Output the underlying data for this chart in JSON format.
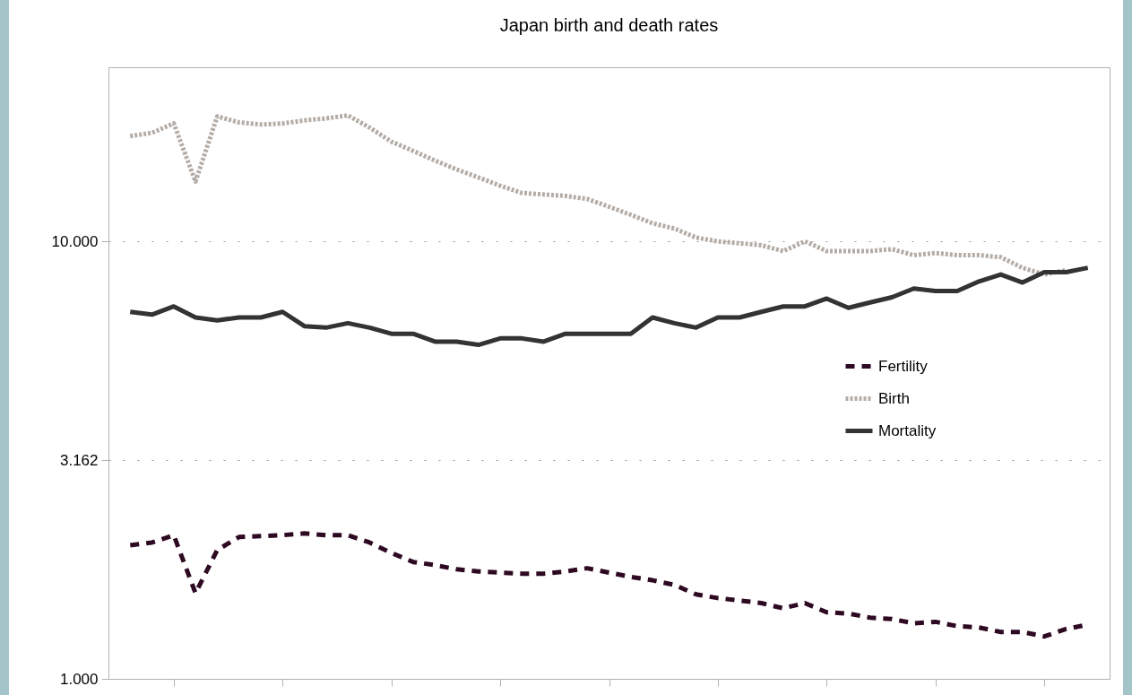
{
  "chart_data": {
    "type": "line",
    "title": "Japan birth and death rates",
    "categories": [
      null,
      null,
      null,
      null,
      null,
      null,
      null,
      null,
      null,
      null,
      null,
      null,
      null,
      null,
      null,
      null,
      null,
      null,
      null,
      null,
      null,
      null,
      null,
      null,
      null,
      null,
      null,
      null,
      null,
      null,
      null,
      null,
      null,
      null,
      null,
      null,
      null,
      null,
      null,
      null,
      null,
      null,
      null,
      null,
      null
    ],
    "series": [
      {
        "name": "Fertility",
        "color": "#2d0a22",
        "line_style": "dashed",
        "values": [
          2.02,
          2.05,
          2.13,
          1.57,
          1.97,
          2.11,
          2.12,
          2.13,
          2.15,
          2.13,
          2.13,
          2.05,
          1.94,
          1.85,
          1.82,
          1.78,
          1.76,
          1.75,
          1.74,
          1.74,
          1.76,
          1.79,
          1.75,
          1.71,
          1.68,
          1.64,
          1.56,
          1.53,
          1.51,
          1.49,
          1.45,
          1.49,
          1.42,
          1.41,
          1.38,
          1.37,
          1.34,
          1.35,
          1.32,
          1.31,
          1.28,
          1.28,
          1.25,
          1.3,
          1.33
        ]
      },
      {
        "name": "Birth",
        "color": "#b3aca6",
        "line_style": "dotted",
        "values": [
          17.4,
          17.7,
          18.6,
          13.7,
          19.3,
          18.7,
          18.5,
          18.6,
          18.9,
          19.1,
          19.4,
          18.2,
          16.9,
          16.1,
          15.3,
          14.6,
          14.0,
          13.4,
          12.9,
          12.8,
          12.7,
          12.5,
          12.0,
          11.5,
          11.0,
          10.7,
          10.2,
          10.0,
          9.9,
          9.8,
          9.5,
          10.0,
          9.5,
          9.5,
          9.5,
          9.6,
          9.3,
          9.4,
          9.3,
          9.3,
          9.2,
          8.7,
          8.4,
          8.6,
          null
        ]
      },
      {
        "name": "Mortality",
        "color": "#333333",
        "line_style": "solid",
        "values": [
          6.9,
          6.8,
          7.1,
          6.7,
          6.6,
          6.7,
          6.7,
          6.9,
          6.4,
          6.35,
          6.5,
          6.35,
          6.15,
          6.15,
          5.9,
          5.9,
          5.8,
          6.0,
          6.0,
          5.9,
          6.15,
          6.15,
          6.15,
          6.15,
          6.7,
          6.5,
          6.35,
          6.7,
          6.7,
          6.9,
          7.1,
          7.1,
          7.4,
          7.05,
          7.25,
          7.45,
          7.8,
          7.7,
          7.7,
          8.1,
          8.4,
          8.05,
          8.5,
          8.5,
          8.7
        ]
      }
    ],
    "log": true,
    "ylim": [
      1,
      25
    ],
    "yticks": [
      {
        "value": 1,
        "label": "1.000"
      },
      3.162,
      {
        "value": 10,
        "label": "10.000"
      }
    ],
    "grid": "y",
    "legend": "right",
    "tick_labels": "y"
  }
}
